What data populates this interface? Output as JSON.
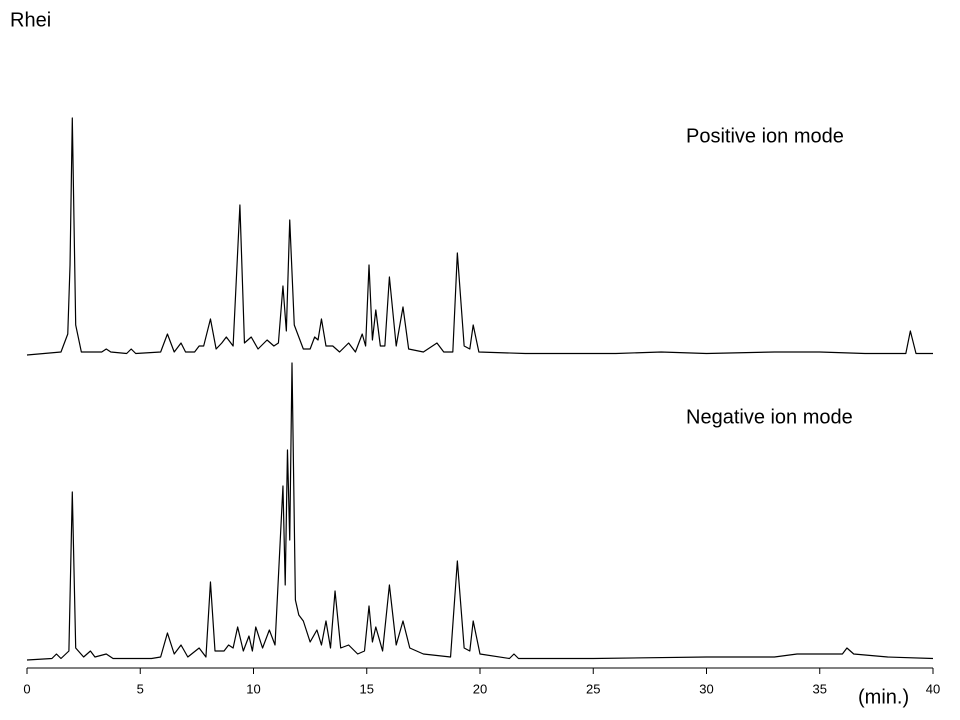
{
  "chart_data": {
    "type": "line",
    "title": "Rhei",
    "xlabel": "(min.)",
    "xlim": [
      0,
      40
    ],
    "xticks": [
      0,
      5,
      10,
      15,
      20,
      25,
      30,
      35,
      40
    ],
    "ylim": [
      0,
      100
    ],
    "series": [
      {
        "name": "Positive ion mode",
        "color": "#000000",
        "x": [
          0,
          1.5,
          1.8,
          1.9,
          2.0,
          2.15,
          2.4,
          3.3,
          3.5,
          3.7,
          4.4,
          4.6,
          4.8,
          5.9,
          6.2,
          6.5,
          6.8,
          7.0,
          7.4,
          7.6,
          7.8,
          8.1,
          8.35,
          8.6,
          8.8,
          9.1,
          9.4,
          9.6,
          9.9,
          10.2,
          10.6,
          10.9,
          11.1,
          11.3,
          11.45,
          11.6,
          11.8,
          11.9,
          12.2,
          12.5,
          12.7,
          12.85,
          13.0,
          13.2,
          13.5,
          13.8,
          14.2,
          14.5,
          14.8,
          14.95,
          15.1,
          15.25,
          15.4,
          15.6,
          15.8,
          16.0,
          16.3,
          16.6,
          16.85,
          17.5,
          18.1,
          18.4,
          18.8,
          19.0,
          19.3,
          19.55,
          19.7,
          19.95,
          22,
          26,
          28,
          30,
          33,
          35,
          37,
          38.8,
          39.0,
          39.25,
          40
        ],
        "values": [
          0,
          1,
          7,
          30,
          79,
          10,
          1,
          1,
          2,
          1,
          0.5,
          2,
          0.5,
          1,
          7,
          1,
          4,
          1,
          1,
          3,
          3,
          12,
          2,
          4,
          6,
          3,
          50,
          4,
          6,
          2,
          5,
          3,
          4,
          23,
          8,
          45,
          10,
          8,
          2,
          2,
          6,
          5,
          12,
          3,
          3,
          1,
          4,
          1,
          7,
          3,
          30,
          5,
          15,
          3,
          3,
          26,
          3,
          16,
          2,
          1,
          4,
          1,
          1,
          34,
          3,
          2,
          10,
          1,
          0.5,
          0.5,
          1,
          0.5,
          1,
          1,
          0.5,
          0.5,
          8,
          0.5,
          0.5
        ]
      },
      {
        "name": "Negative ion mode",
        "color": "#000000",
        "x": [
          0,
          1.1,
          1.3,
          1.5,
          1.85,
          2.0,
          2.15,
          2.5,
          2.8,
          3.0,
          3.5,
          3.8,
          5.5,
          5.9,
          6.2,
          6.5,
          6.8,
          7.1,
          7.6,
          7.9,
          8.1,
          8.3,
          8.7,
          8.9,
          9.1,
          9.3,
          9.55,
          9.8,
          9.95,
          10.1,
          10.4,
          10.7,
          10.95,
          11.3,
          11.4,
          11.5,
          11.6,
          11.7,
          11.85,
          12.0,
          12.2,
          12.5,
          12.8,
          13.0,
          13.2,
          13.4,
          13.6,
          13.85,
          14.2,
          14.6,
          14.9,
          15.1,
          15.25,
          15.4,
          15.7,
          16.0,
          16.3,
          16.6,
          16.9,
          17.5,
          18.7,
          19.0,
          19.3,
          19.55,
          19.7,
          20.0,
          21.3,
          21.5,
          21.7,
          25,
          30,
          33,
          34,
          35,
          36.0,
          36.2,
          36.5,
          38,
          40
        ],
        "values": [
          0,
          0.5,
          2,
          0.5,
          3,
          56,
          4,
          1,
          3,
          1,
          2,
          0.5,
          0.5,
          1,
          9,
          2,
          5,
          1,
          4,
          1,
          26,
          3,
          3,
          5,
          4,
          11,
          3,
          8,
          3,
          11,
          4,
          10,
          5,
          58,
          25,
          70,
          40,
          99,
          20,
          15,
          13,
          6,
          10,
          5,
          13,
          4,
          23,
          4,
          5,
          2,
          3,
          18,
          6,
          11,
          3,
          25,
          5,
          13,
          4,
          2,
          1,
          33,
          4,
          3,
          13,
          2,
          0.5,
          2,
          0.5,
          0.5,
          1,
          1,
          2,
          2,
          2,
          4,
          2,
          1,
          0.5
        ]
      }
    ]
  }
}
